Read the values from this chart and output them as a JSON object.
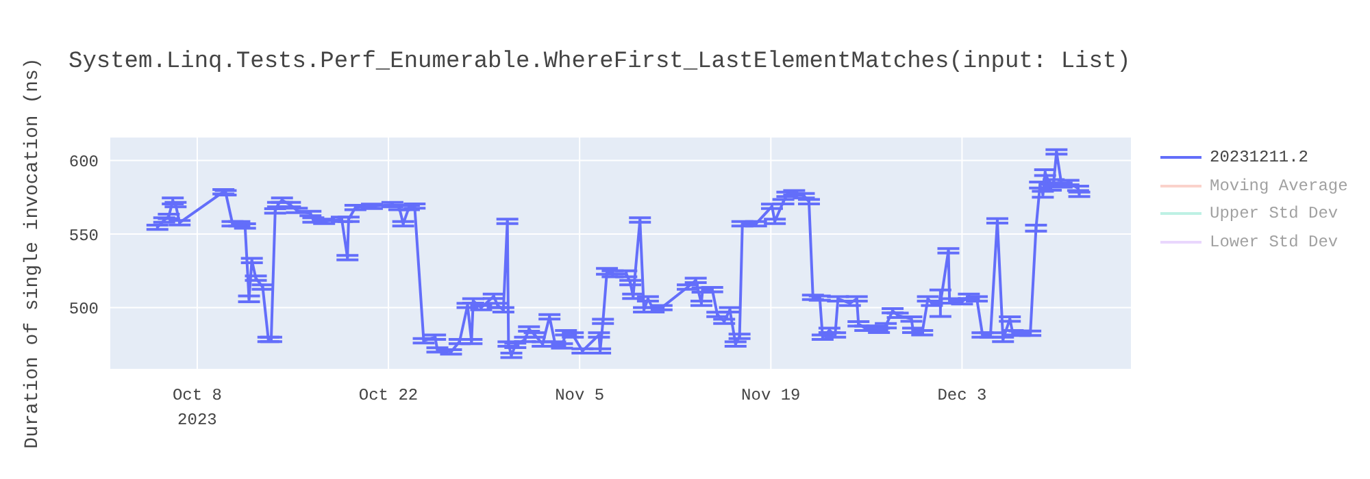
{
  "chart_data": {
    "type": "line",
    "title": "System.Linq.Tests.Perf_Enumerable.WhereFirst_LastElementMatches(input: List)",
    "ylabel": "Duration of single invocation (ns)",
    "xlim": [
      "2023-10-01T14:00",
      "2023-12-15T10:00"
    ],
    "xticks": [
      {
        "value": "2023-10-08",
        "label": "Oct 8\n2023"
      },
      {
        "value": "2023-10-22",
        "label": "Oct 22"
      },
      {
        "value": "2023-11-05",
        "label": "Nov 5"
      },
      {
        "value": "2023-11-19",
        "label": "Nov 19"
      },
      {
        "value": "2023-12-03",
        "label": "Dec 3"
      }
    ],
    "ylim": [
      458,
      616
    ],
    "yticks": [
      500,
      550,
      600
    ],
    "grid": true,
    "legend": "top right",
    "marker": "none",
    "line_style": "solid",
    "series": [
      {
        "name": "20231211.2",
        "color": "#636efa",
        "x": [
          "2023-10-05T02:00",
          "2023-10-05T14:00",
          "2023-10-05T22:00",
          "2023-10-06T05:00",
          "2023-10-06T10:00",
          "2023-10-06T17:00",
          "2023-10-09T22:00",
          "2023-10-10T02:00",
          "2023-10-10T14:00",
          "2023-10-11T02:00",
          "2023-10-11T12:00",
          "2023-10-11T19:00",
          "2023-10-12T00:00",
          "2023-10-12T07:00",
          "2023-10-12T19:00",
          "2023-10-13T05:00",
          "2023-10-13T10:00",
          "2023-10-13T17:00",
          "2023-10-13T22:00",
          "2023-10-14T05:00",
          "2023-10-14T19:00",
          "2023-10-15T07:00",
          "2023-10-16T07:00",
          "2023-10-16T12:00",
          "2023-10-17T07:00",
          "2023-10-18T14:00",
          "2023-10-19T00:00",
          "2023-10-19T02:00",
          "2023-10-19T14:00",
          "2023-10-20T19:00",
          "2023-10-22T07:00",
          "2023-10-22T19:00",
          "2023-10-23T02:00",
          "2023-10-23T12:00",
          "2023-10-23T22:00",
          "2023-10-24T14:00",
          "2023-10-25T10:00",
          "2023-10-25T14:00",
          "2023-10-26T14:00",
          "2023-10-27T05:00",
          "2023-10-27T19:00",
          "2023-10-28T02:00",
          "2023-10-28T05:00",
          "2023-10-28T19:00",
          "2023-10-29T17:00",
          "2023-10-30T00:00",
          "2023-10-30T10:00",
          "2023-10-30T17:00",
          "2023-10-30T19:00",
          "2023-10-31T00:00",
          "2023-10-31T07:00",
          "2023-11-01T00:00",
          "2023-11-01T07:00",
          "2023-11-01T17:00",
          "2023-11-02T07:00",
          "2023-11-02T19:00",
          "2023-11-03T05:00",
          "2023-11-03T17:00",
          "2023-11-04T00:00",
          "2023-11-04T12:00",
          "2023-11-05T05:00",
          "2023-11-06T10:00",
          "2023-11-06T12:00",
          "2023-11-06T17:00",
          "2023-11-07T00:00",
          "2023-11-07T10:00",
          "2023-11-08T10:00",
          "2023-11-08T17:00",
          "2023-11-08T22:00",
          "2023-11-09T10:00",
          "2023-11-09T17:00",
          "2023-11-10T00:00",
          "2023-11-10T10:00",
          "2023-11-11T00:00",
          "2023-11-12T22:00",
          "2023-11-13T12:00",
          "2023-11-13T22:00",
          "2023-11-14T00:00",
          "2023-11-14T17:00",
          "2023-11-15T02:00",
          "2023-11-15T14:00",
          "2023-11-16T00:00",
          "2023-11-16T10:00",
          "2023-11-16T17:00",
          "2023-11-16T22:00",
          "2023-11-17T22:00",
          "2023-11-19T02:00",
          "2023-11-19T07:00",
          "2023-11-19T22:00",
          "2023-11-20T05:00",
          "2023-11-20T17:00",
          "2023-11-21T10:00",
          "2023-11-21T19:00",
          "2023-11-22T02:00",
          "2023-11-22T14:00",
          "2023-11-22T19:00",
          "2023-11-23T07:00",
          "2023-11-23T17:00",
          "2023-11-23T22:00",
          "2023-11-24T19:00",
          "2023-11-25T07:00",
          "2023-11-25T10:00",
          "2023-11-25T22:00",
          "2023-11-26T19:00",
          "2023-11-26T22:00",
          "2023-11-27T10:00",
          "2023-11-27T22:00",
          "2023-11-28T07:00",
          "2023-11-29T07:00",
          "2023-11-29T10:00",
          "2023-11-30T02:00",
          "2023-11-30T12:00",
          "2023-11-30T19:00",
          "2023-12-01T10:00",
          "2023-12-02T00:00",
          "2023-12-02T02:00",
          "2023-12-03T00:00",
          "2023-12-03T12:00",
          "2023-12-04T02:00",
          "2023-12-04T12:00",
          "2023-12-05T02:00",
          "2023-12-05T14:00",
          "2023-12-06T00:00",
          "2023-12-06T12:00",
          "2023-12-06T17:00",
          "2023-12-07T05:00",
          "2023-12-08T00:00",
          "2023-12-08T10:00",
          "2023-12-08T17:00",
          "2023-12-08T22:00",
          "2023-12-09T02:00",
          "2023-12-09T12:00",
          "2023-12-09T17:00",
          "2023-12-09T22:00",
          "2023-12-10T07:00",
          "2023-12-10T19:00",
          "2023-12-11T12:00",
          "2023-12-11T14:00"
        ],
        "values": [
          554.6,
          559.5,
          562,
          572.5,
          570,
          557.7,
          578.7,
          578,
          557,
          557,
          555.5,
          506,
          532,
          520,
          514,
          478.4,
          478.4,
          565.7,
          570,
          573,
          570,
          566,
          564,
          559.5,
          558.6,
          560,
          534,
          560,
          568,
          568.8,
          570,
          568,
          557,
          568,
          569,
          477.5,
          480,
          471.3,
          470,
          477,
          501.5,
          477,
          504.6,
          500,
          507.7,
          501.5,
          498.5,
          558.6,
          475.3,
          467.6,
          474.4,
          478.4,
          485.5,
          481.5,
          475.3,
          493.8,
          475.3,
          474,
          483,
          481.5,
          470.6,
          481.5,
          470.6,
          490.7,
          524.7,
          523,
          523,
          517,
          507.7,
          559.5,
          498.5,
          506,
          498.5,
          500,
          514,
          518.5,
          503,
          512,
          512.3,
          495.4,
          490.7,
          498.5,
          475.3,
          480.5,
          557,
          557,
          568.8,
          558.6,
          572,
          577,
          578,
          576,
          572,
          507,
          506.5,
          480,
          484.6,
          481.5,
          506,
          503,
          506,
          489,
          486,
          486,
          484.6,
          487.7,
          497.9,
          494.8,
          492.3,
          484.6,
          483,
          506,
          503,
          503,
          538.6,
          504.6,
          504,
          507.7,
          506,
          481.5,
          481.5,
          559,
          478.4,
          492.3,
          483,
          482.6,
          482.6,
          554,
          583.3,
          577,
          591.7,
          581.8,
          585,
          605.8,
          583.3,
          585,
          581,
          577
        ],
        "errors": [
          1.5,
          1.5,
          1.5,
          2,
          1.5,
          1.5,
          1.5,
          1.5,
          1.5,
          1.5,
          1.5,
          2,
          1.5,
          1.5,
          1.5,
          1.5,
          1.5,
          1.5,
          1.5,
          1.5,
          1.5,
          1.5,
          1.5,
          1.5,
          1.5,
          1.5,
          1.5,
          1.5,
          1.5,
          1.5,
          1.5,
          1.5,
          1.5,
          1.5,
          1.5,
          1.5,
          1.5,
          1.5,
          1.5,
          1.5,
          1.5,
          1.5,
          1.5,
          1.5,
          1.5,
          1.5,
          1.5,
          1.5,
          1.5,
          1.5,
          1.5,
          1.5,
          1.5,
          1.5,
          1.5,
          1.5,
          1.5,
          1.5,
          1.5,
          1.5,
          1.5,
          1.5,
          1.5,
          1.5,
          2,
          2,
          2,
          1.5,
          1.5,
          1.5,
          1.5,
          1.5,
          1.5,
          1.5,
          1.5,
          1.5,
          1.5,
          1.5,
          1.5,
          1.5,
          1.5,
          1.5,
          1.5,
          1.5,
          1.5,
          1.5,
          1.5,
          1.5,
          1.5,
          1.5,
          1.5,
          1.5,
          1.5,
          1.5,
          1.5,
          1.5,
          1.5,
          1.5,
          1.5,
          1.5,
          1.5,
          1.5,
          1.5,
          1.5,
          1.5,
          1.5,
          1.5,
          1.5,
          1.5,
          1.5,
          1.5,
          1.5,
          1.5,
          9,
          1.5,
          1.5,
          1.5,
          1.5,
          1.5,
          1.5,
          1.5,
          1.5,
          1.5,
          1.5,
          1.5,
          1.5,
          1.5,
          2,
          2,
          2,
          2,
          2,
          2,
          1.5,
          1.5,
          1.5,
          1.5,
          1.5
        ]
      },
      {
        "name": "Moving Average",
        "color": "#f6a799"
      },
      {
        "name": "Upper Std Dev",
        "color": "#7fe5ca"
      },
      {
        "name": "Lower Std Dev",
        "color": "#d5b1fc"
      }
    ]
  }
}
